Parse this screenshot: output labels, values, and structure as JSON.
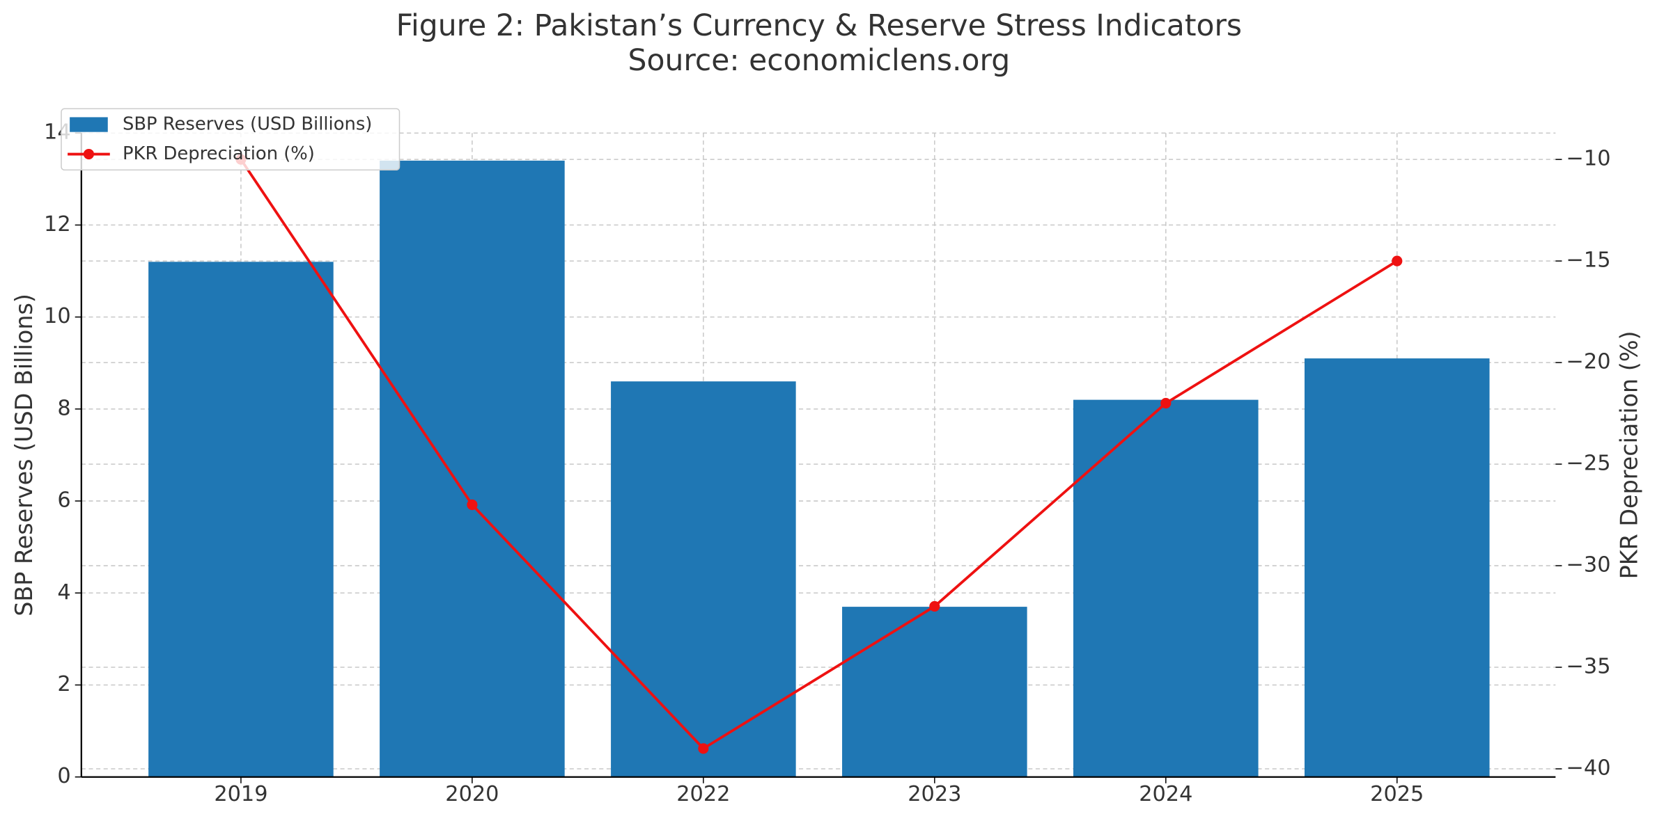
{
  "chart_data": {
    "type": "bar-line",
    "title": "Figure 2: Pakistan’s Currency & Reserve Stress Indicators",
    "subtitle": "Source: economiclens.org",
    "categories": [
      "2019",
      "2020",
      "2022",
      "2023",
      "2024",
      "2025"
    ],
    "series": [
      {
        "name": "SBP Reserves (USD Billions)",
        "type": "bar",
        "color": "#1f77b4",
        "values": [
          11.2,
          13.4,
          8.6,
          3.7,
          8.2,
          9.1
        ]
      },
      {
        "name": "PKR Depreciation (%)",
        "type": "line",
        "axis": "y2",
        "color": "#ee1111",
        "values": [
          -10,
          -27,
          -39,
          -32,
          -22,
          -15
        ]
      }
    ],
    "ylabel": "SBP Reserves (USD Billions)",
    "y2label": "PKR Depreciation (%)",
    "ylim": [
      0,
      14
    ],
    "yticks": [
      0,
      2,
      4,
      6,
      8,
      10,
      12,
      14
    ],
    "y2lim": [
      -40.4,
      -8.7
    ],
    "y2ticks": [
      {
        "value": -40,
        "label": "−40"
      },
      {
        "value": -35,
        "label": "−35"
      },
      {
        "value": -30,
        "label": "−30"
      },
      {
        "value": -25,
        "label": "−25"
      },
      {
        "value": -20,
        "label": "−20"
      },
      {
        "value": -15,
        "label": "−15"
      },
      {
        "value": -10,
        "label": "−10"
      }
    ],
    "grid": true,
    "legend": "upper-left"
  }
}
